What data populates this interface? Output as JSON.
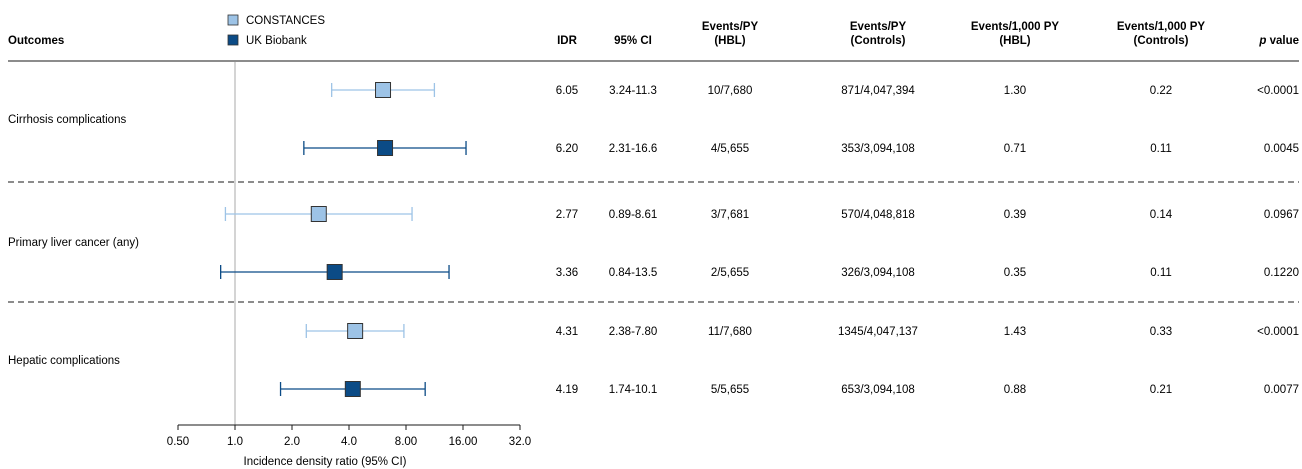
{
  "chart_data": {
    "type": "forest",
    "legend": [
      {
        "name": "CONSTANCES",
        "color": "#9dc3e6"
      },
      {
        "name": "UK Biobank",
        "color": "#0b4b86"
      }
    ],
    "legend_position": "top",
    "xlabel": "Incidence density ratio (95% CI)",
    "x_scale": "log2",
    "xlim": [
      0.5,
      32
    ],
    "x_ticks": [
      0.5,
      1,
      2,
      4,
      8,
      16,
      32
    ],
    "x_tick_labels": [
      "0.50",
      "1.0",
      "2.0",
      "4.0",
      "8.00",
      "16.00",
      "32.0"
    ],
    "reference_line": 1,
    "columns": [
      {
        "line1": "Outcomes",
        "line2": ""
      },
      {
        "line1": "IDR",
        "line2": ""
      },
      {
        "line1": "95% CI",
        "line2": ""
      },
      {
        "line1": "Events/PY",
        "line2": "(HBL)"
      },
      {
        "line1": "Events/PY",
        "line2": "(Controls)"
      },
      {
        "line1": "Events/1,000 PY",
        "line2": "(HBL)"
      },
      {
        "line1": "Events/1,000 PY",
        "line2": "(Controls)"
      },
      {
        "line1": "p",
        "line2": " value"
      }
    ],
    "groups": [
      {
        "outcome": "Cirrhosis complications",
        "rows": [
          {
            "series": "CONSTANCES",
            "idr": 6.05,
            "ci_low": 3.24,
            "ci_high": 11.3,
            "idr_text": "6.05",
            "ci_text": "3.24-11.3",
            "events_py_hbl": "10/7,680",
            "events_py_controls": "871/4,047,394",
            "rate_hbl": "1.30",
            "rate_controls": "0.22",
            "p": "<0.0001"
          },
          {
            "series": "UK Biobank",
            "idr": 6.2,
            "ci_low": 2.31,
            "ci_high": 16.6,
            "idr_text": "6.20",
            "ci_text": "2.31-16.6",
            "events_py_hbl": "4/5,655",
            "events_py_controls": "353/3,094,108",
            "rate_hbl": "0.71",
            "rate_controls": "0.11",
            "p": "0.0045"
          }
        ]
      },
      {
        "outcome": "Primary liver cancer (any)",
        "rows": [
          {
            "series": "CONSTANCES",
            "idr": 2.77,
            "ci_low": 0.89,
            "ci_high": 8.61,
            "idr_text": "2.77",
            "ci_text": "0.89-8.61",
            "events_py_hbl": "3/7,681",
            "events_py_controls": "570/4,048,818",
            "rate_hbl": "0.39",
            "rate_controls": "0.14",
            "p": "0.0967"
          },
          {
            "series": "UK Biobank",
            "idr": 3.36,
            "ci_low": 0.84,
            "ci_high": 13.5,
            "idr_text": "3.36",
            "ci_text": "0.84-13.5",
            "events_py_hbl": "2/5,655",
            "events_py_controls": "326/3,094,108",
            "rate_hbl": "0.35",
            "rate_controls": "0.11",
            "p": "0.1220"
          }
        ]
      },
      {
        "outcome": "Hepatic complications",
        "rows": [
          {
            "series": "CONSTANCES",
            "idr": 4.31,
            "ci_low": 2.38,
            "ci_high": 7.8,
            "idr_text": "4.31",
            "ci_text": "2.38-7.80",
            "events_py_hbl": "11/7,680",
            "events_py_controls": "1345/4,047,137",
            "rate_hbl": "1.43",
            "rate_controls": "0.33",
            "p": "<0.0001"
          },
          {
            "series": "UK Biobank",
            "idr": 4.19,
            "ci_low": 1.74,
            "ci_high": 10.1,
            "idr_text": "4.19",
            "ci_text": "1.74-10.1",
            "events_py_hbl": "5/5,655",
            "events_py_controls": "653/3,094,108",
            "rate_hbl": "0.88",
            "rate_controls": "0.21",
            "p": "0.0077"
          }
        ]
      }
    ]
  }
}
